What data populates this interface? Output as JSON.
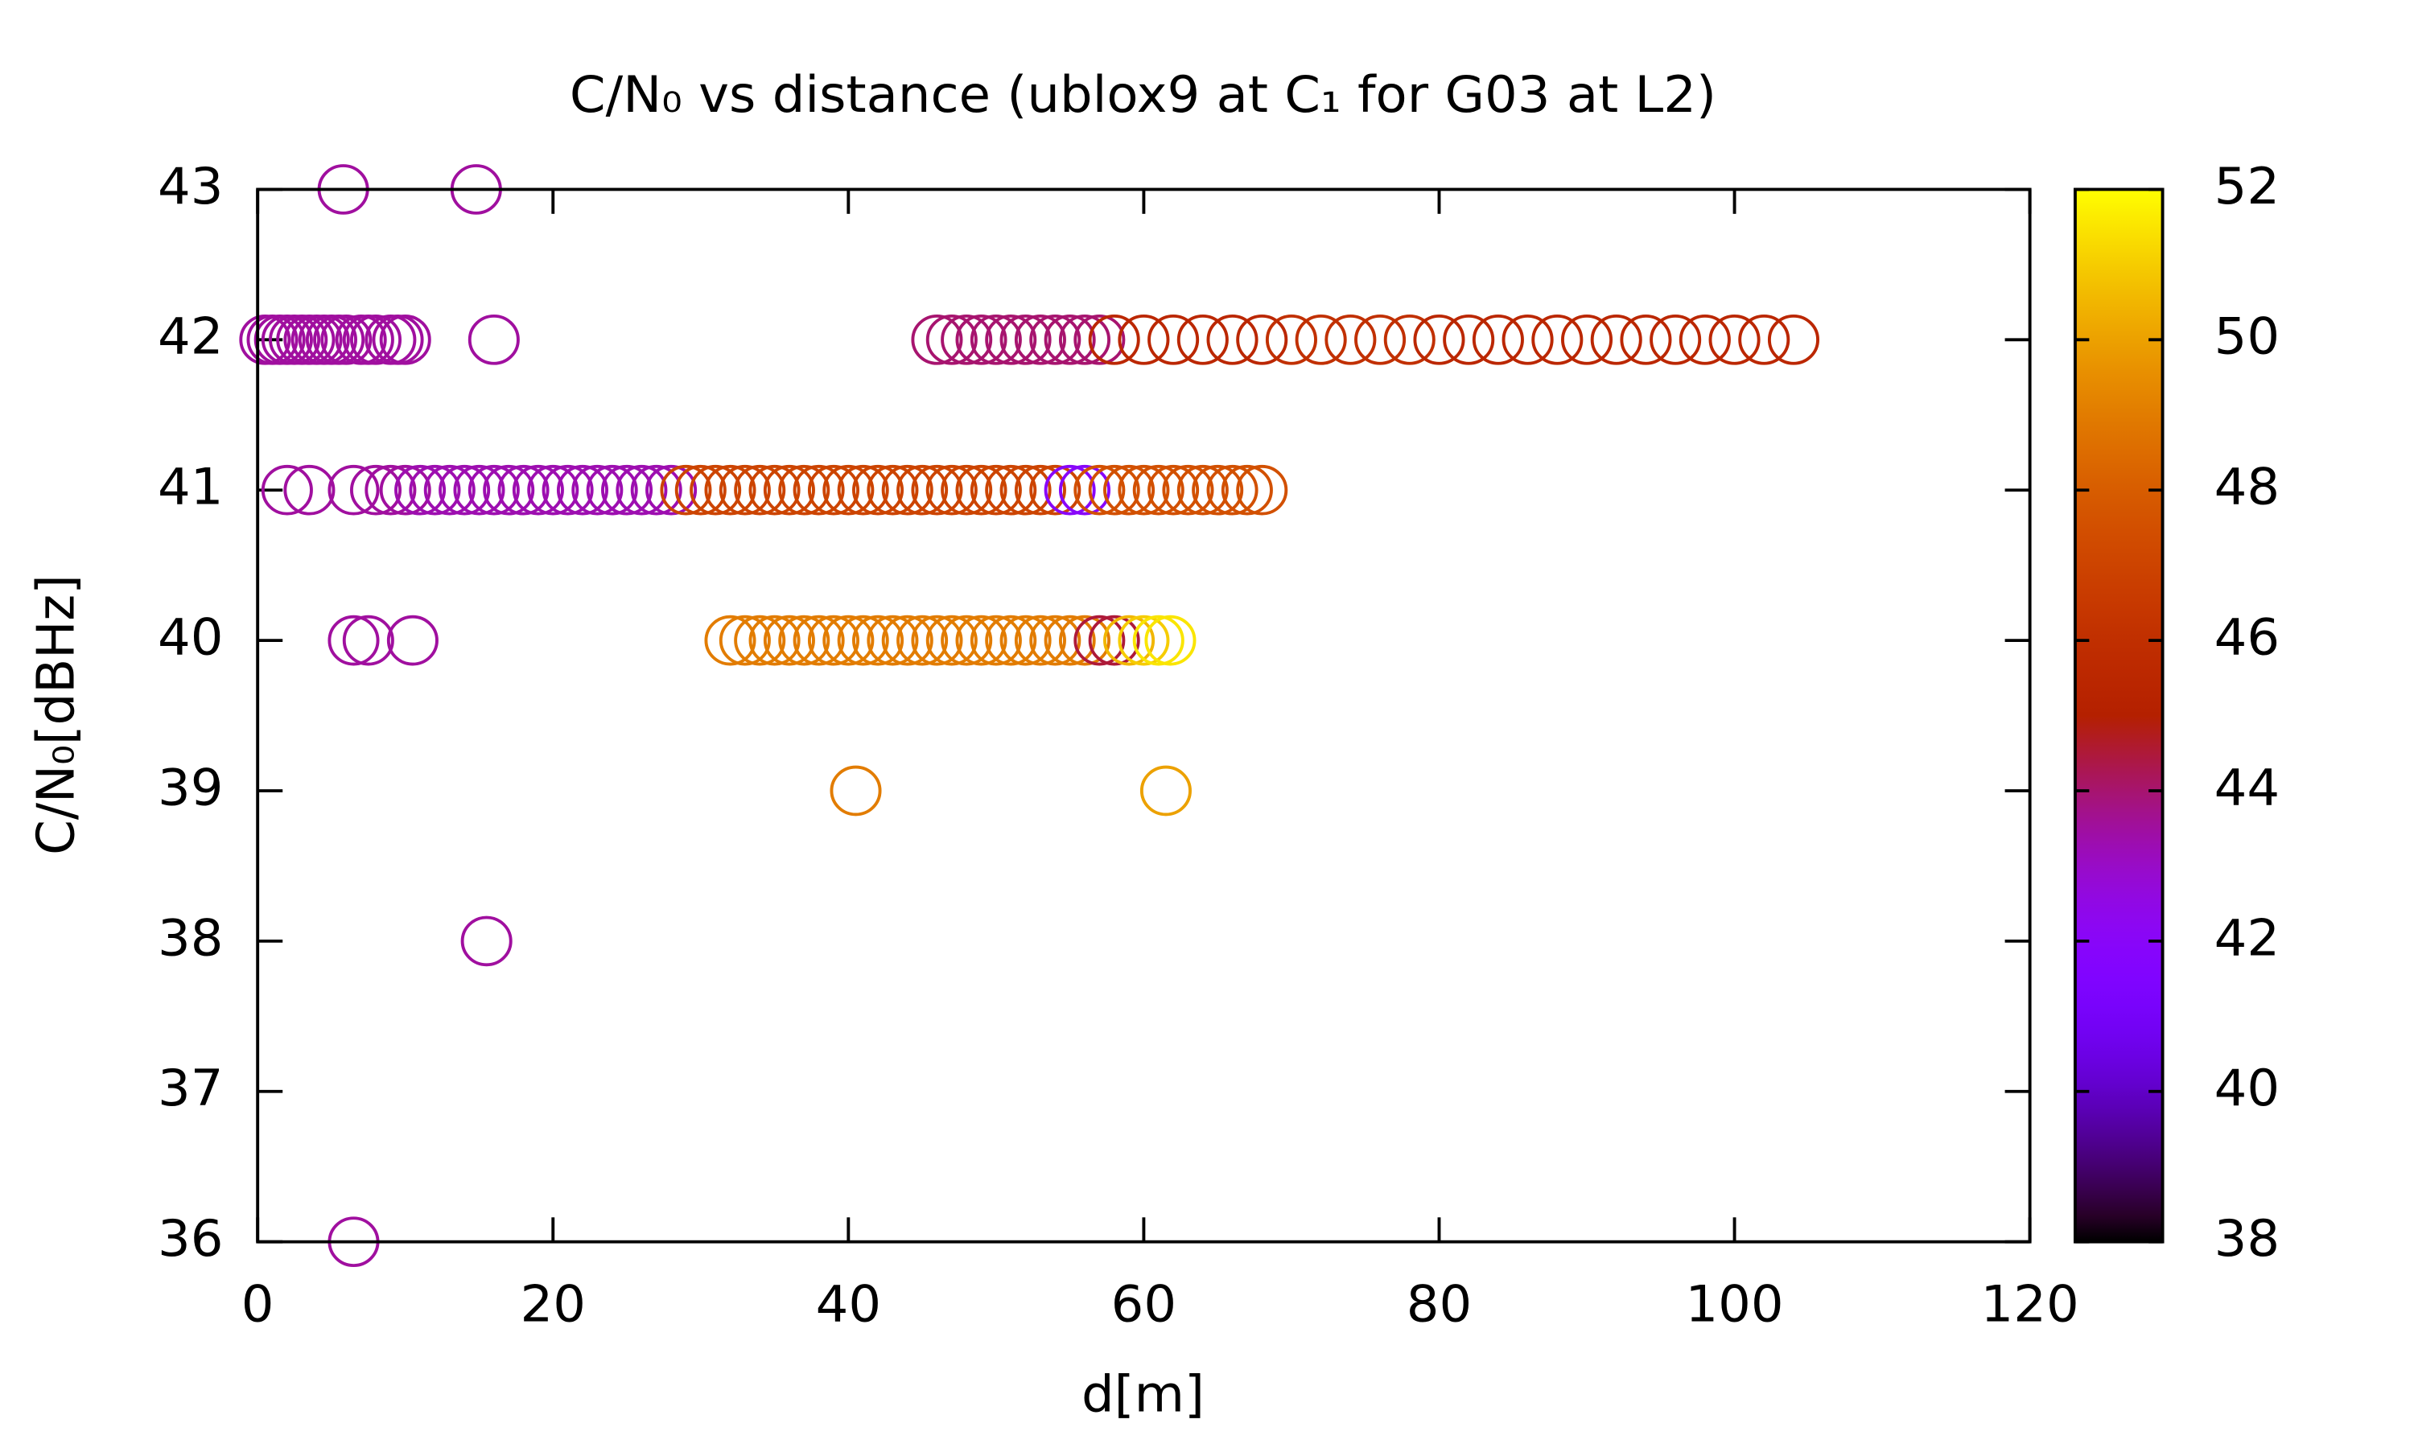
{
  "chart_data": {
    "type": "scatter",
    "title": "C/N₀ vs distance (ublox9 at C₁ for G03 at L2)",
    "x_label": "d[m]",
    "y_label": "C/N₀[dBHz]",
    "xlim": [
      0,
      120
    ],
    "xticks": [
      0,
      20,
      40,
      60,
      80,
      100,
      120
    ],
    "ylim": [
      36,
      43
    ],
    "yticks": [
      36,
      37,
      38,
      39,
      40,
      41,
      42,
      43
    ],
    "cblim": [
      38,
      52
    ],
    "cbticks": [
      38,
      40,
      42,
      44,
      46,
      48,
      50,
      52
    ],
    "palette": "gnuplot",
    "x": [
      5.8,
      14.8,
      0.5,
      1,
      1.5,
      2,
      2.5,
      3,
      3.5,
      4,
      4.5,
      5,
      5.5,
      6,
      7,
      7.5,
      8,
      9,
      9.5,
      10,
      16,
      46,
      47,
      48,
      49,
      50,
      51,
      52,
      53,
      54,
      55,
      56,
      57,
      58,
      60,
      62,
      64,
      66,
      68,
      70,
      72,
      74,
      76,
      78,
      80,
      82,
      84,
      86,
      88,
      90,
      92,
      94,
      96,
      98,
      100,
      102,
      104,
      2,
      3.5,
      6.5,
      8,
      9,
      10,
      11,
      12,
      13,
      14,
      15,
      16,
      17,
      18,
      19,
      20,
      21,
      22,
      23,
      24,
      25,
      26,
      27,
      28,
      29,
      30,
      31,
      32,
      33,
      34,
      35,
      36,
      37,
      38,
      39,
      40,
      41,
      42,
      43,
      44,
      45,
      46,
      47,
      48,
      49,
      50,
      51,
      52,
      53,
      54,
      55,
      56,
      57,
      58,
      59,
      60,
      61,
      62,
      63,
      64,
      65,
      66,
      67,
      68,
      6.5,
      7.5,
      10.5,
      32,
      33,
      34,
      35,
      36,
      37,
      38,
      39,
      40,
      41,
      42,
      43,
      44,
      45,
      46,
      47,
      48,
      49,
      50,
      51,
      52,
      53,
      54,
      55,
      56,
      57,
      58,
      59,
      60,
      61,
      61.8,
      40.5,
      61.5,
      15.5,
      6.5
    ],
    "y": [
      43,
      43,
      42,
      42,
      42,
      42,
      42,
      42,
      42,
      42,
      42,
      42,
      42,
      42,
      42,
      42,
      42,
      42,
      42,
      42,
      42,
      42,
      42,
      42,
      42,
      42,
      42,
      42,
      42,
      42,
      42,
      42,
      42,
      42,
      42,
      42,
      42,
      42,
      42,
      42,
      42,
      42,
      42,
      42,
      42,
      42,
      42,
      42,
      42,
      42,
      42,
      42,
      42,
      42,
      42,
      42,
      42,
      41,
      41,
      41,
      41,
      41,
      41,
      41,
      41,
      41,
      41,
      41,
      41,
      41,
      41,
      41,
      41,
      41,
      41,
      41,
      41,
      41,
      41,
      41,
      41,
      41,
      41,
      41,
      41,
      41,
      41,
      41,
      41,
      41,
      41,
      41,
      41,
      41,
      41,
      41,
      41,
      41,
      41,
      41,
      41,
      41,
      41,
      41,
      41,
      41,
      41,
      41,
      41,
      41,
      41,
      41,
      41,
      41,
      41,
      41,
      41,
      41,
      41,
      41,
      41,
      40,
      40,
      40,
      40,
      40,
      40,
      40,
      40,
      40,
      40,
      40,
      40,
      40,
      40,
      40,
      40,
      40,
      40,
      40,
      40,
      40,
      40,
      40,
      40,
      40,
      40,
      40,
      40,
      40,
      40,
      40,
      40,
      40,
      40,
      39,
      39,
      38,
      36
    ],
    "c": [
      43.5,
      43.5,
      43.5,
      43.5,
      43.5,
      43.5,
      43.5,
      43.5,
      43.5,
      43.5,
      43.5,
      43.5,
      43.5,
      43.5,
      43.5,
      43.5,
      43.5,
      43.5,
      43.5,
      43.5,
      43.5,
      44,
      44,
      44,
      44,
      44,
      44,
      44,
      44,
      44,
      44,
      44,
      44,
      45.5,
      45.5,
      45.5,
      45.5,
      45.5,
      45.5,
      46,
      46,
      46,
      46,
      46,
      45.5,
      45.5,
      45.5,
      45.5,
      45.5,
      45.5,
      45.5,
      45.5,
      45.5,
      45.5,
      45.5,
      45.5,
      45.5,
      43.5,
      43.5,
      43.5,
      43.5,
      43.5,
      43.5,
      43.3,
      43.3,
      43.3,
      43.3,
      43.3,
      43.3,
      43.3,
      43.3,
      43.3,
      43.3,
      43.3,
      43.3,
      43.3,
      43.3,
      43.3,
      43.3,
      43.3,
      43.3,
      47,
      47,
      47,
      47,
      47,
      47,
      47,
      47,
      47,
      47,
      47,
      47,
      47,
      47,
      47,
      47,
      47,
      47,
      47,
      47,
      47,
      47,
      47,
      47,
      47,
      47,
      42,
      42,
      47.5,
      47.5,
      47.5,
      47.5,
      47.5,
      47.5,
      47.5,
      47.5,
      47.5,
      47.5,
      47.5,
      47.5,
      43.5,
      43.5,
      43.5,
      49,
      49,
      49,
      49,
      49,
      49,
      49,
      49,
      49,
      49,
      49,
      49,
      49,
      49,
      49,
      49,
      49,
      49,
      49,
      49,
      49,
      49,
      49,
      49,
      49,
      44.5,
      44.5,
      50.5,
      51,
      51.5,
      51.5,
      49,
      50,
      43.5,
      43.5
    ]
  }
}
